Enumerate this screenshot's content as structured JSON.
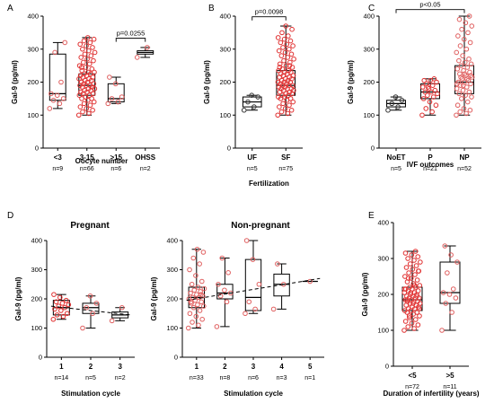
{
  "chart_data": [
    {
      "id": "A",
      "type": "box",
      "panel_letter": "A",
      "title": "",
      "xlabel": "Oocyte number",
      "ylabel": "Gal-9 (pg/ml)",
      "ylim": [
        0,
        400
      ],
      "yticks": [
        "0",
        "100",
        "200",
        "300",
        "400"
      ],
      "categories": [
        {
          "label": "<3",
          "n": "n=9",
          "color": "#e06060",
          "box": {
            "min": 120,
            "q1": 145,
            "median": 165,
            "q3": 285,
            "max": 320
          },
          "points": [
            120,
            135,
            145,
            150,
            160,
            165,
            200,
            290,
            320
          ]
        },
        {
          "label": "3-15",
          "n": "n=66",
          "color": "#e03030",
          "box": {
            "min": 100,
            "q1": 160,
            "median": 190,
            "q3": 225,
            "max": 335
          },
          "points": [
            100,
            105,
            110,
            115,
            120,
            125,
            130,
            135,
            140,
            145,
            150,
            150,
            155,
            160,
            160,
            165,
            165,
            170,
            170,
            175,
            175,
            180,
            180,
            185,
            185,
            190,
            190,
            190,
            195,
            195,
            200,
            200,
            205,
            205,
            210,
            210,
            215,
            215,
            220,
            220,
            225,
            225,
            230,
            230,
            235,
            240,
            245,
            250,
            255,
            260,
            265,
            270,
            275,
            280,
            285,
            290,
            295,
            300,
            305,
            310,
            315,
            320,
            325,
            330,
            335,
            245
          ]
        },
        {
          "label": ">15",
          "n": "n=6",
          "color": "#e06060",
          "box": {
            "min": 135,
            "q1": 140,
            "median": 150,
            "q3": 195,
            "max": 215
          },
          "points": [
            135,
            140,
            150,
            155,
            195,
            215
          ]
        },
        {
          "label": "OHSS",
          "n": "n=2",
          "color": "#e06060",
          "box": {
            "min": 275,
            "q1": 285,
            "median": 290,
            "q3": 295,
            "max": 305
          },
          "points": [
            275,
            305
          ]
        }
      ],
      "annotations": [
        {
          "text": "p=0.0255",
          "from": 2,
          "to": 3
        }
      ]
    },
    {
      "id": "B",
      "type": "box",
      "panel_letter": "B",
      "title": "",
      "xlabel": "Fertilization",
      "ylabel": "Gal-9 (pg/ml)",
      "ylim": [
        0,
        400
      ],
      "yticks": [
        "0",
        "100",
        "200",
        "300",
        "400"
      ],
      "categories": [
        {
          "label": "UF",
          "n": "n=5",
          "color": "#333333",
          "box": {
            "min": 115,
            "q1": 125,
            "median": 140,
            "q3": 155,
            "max": 160
          },
          "points": [
            115,
            125,
            140,
            155,
            160
          ]
        },
        {
          "label": "SF",
          "n": "n=75",
          "color": "#e03030",
          "box": {
            "min": 100,
            "q1": 160,
            "median": 190,
            "q3": 235,
            "max": 370
          },
          "points": [
            100,
            105,
            110,
            115,
            120,
            125,
            130,
            135,
            140,
            145,
            150,
            150,
            155,
            155,
            160,
            160,
            165,
            165,
            170,
            170,
            175,
            175,
            180,
            180,
            180,
            185,
            185,
            190,
            190,
            190,
            195,
            195,
            200,
            200,
            200,
            205,
            205,
            210,
            210,
            215,
            215,
            220,
            220,
            225,
            225,
            230,
            230,
            235,
            235,
            240,
            245,
            250,
            255,
            260,
            265,
            270,
            275,
            280,
            285,
            290,
            295,
            300,
            305,
            310,
            315,
            320,
            325,
            330,
            335,
            340,
            350,
            360,
            370,
            245,
            250
          ]
        }
      ],
      "annotations": [
        {
          "text": "p=0.0098",
          "from": 0,
          "to": 1
        }
      ]
    },
    {
      "id": "C",
      "type": "box",
      "panel_letter": "C",
      "title": "",
      "xlabel": "IVF outcomes",
      "ylabel": "Gal-9 (pg/ml)",
      "ylim": [
        0,
        400
      ],
      "yticks": [
        "0",
        "100",
        "200",
        "300",
        "400"
      ],
      "categories": [
        {
          "label": "NoET",
          "n": "n=5",
          "color": "#333333",
          "box": {
            "min": 115,
            "q1": 125,
            "median": 135,
            "q3": 145,
            "max": 155
          },
          "points": [
            115,
            125,
            135,
            145,
            155
          ]
        },
        {
          "label": "P",
          "n": "n=21",
          "color": "#e03030",
          "box": {
            "min": 100,
            "q1": 150,
            "median": 170,
            "q3": 195,
            "max": 210
          },
          "points": [
            100,
            110,
            120,
            130,
            140,
            150,
            155,
            160,
            165,
            170,
            170,
            175,
            180,
            185,
            190,
            195,
            200,
            205,
            205,
            210,
            185
          ]
        },
        {
          "label": "NP",
          "n": "n=52",
          "color": "#e06060",
          "box": {
            "min": 100,
            "q1": 165,
            "median": 200,
            "q3": 250,
            "max": 400
          },
          "points": [
            100,
            105,
            110,
            115,
            120,
            130,
            140,
            150,
            155,
            160,
            165,
            170,
            175,
            180,
            185,
            190,
            195,
            200,
            200,
            205,
            210,
            215,
            220,
            225,
            230,
            235,
            240,
            245,
            250,
            255,
            260,
            265,
            270,
            280,
            290,
            300,
            310,
            320,
            330,
            340,
            350,
            360,
            370,
            380,
            390,
            400,
            190,
            195,
            210,
            215,
            220,
            225
          ]
        }
      ],
      "annotations": [
        {
          "text": "p<0.05",
          "from": 0,
          "to": 2
        }
      ]
    },
    {
      "id": "D1",
      "type": "box",
      "panel_letter": "D",
      "title": "Pregnant",
      "xlabel": "Stimulation cycle",
      "ylabel": "Gal-9 (pg/ml)",
      "ylim": [
        0,
        400
      ],
      "yticks": [
        "0",
        "100",
        "200",
        "300",
        "400"
      ],
      "categories": [
        {
          "label": "1",
          "n": "n=14",
          "color": "#e03030",
          "box": {
            "min": 130,
            "q1": 145,
            "median": 170,
            "q3": 195,
            "max": 215
          },
          "points": [
            130,
            140,
            145,
            150,
            160,
            165,
            170,
            175,
            180,
            185,
            190,
            195,
            205,
            215
          ]
        },
        {
          "label": "2",
          "n": "n=5",
          "color": "#e06060",
          "box": {
            "min": 100,
            "q1": 150,
            "median": 170,
            "q3": 185,
            "max": 210
          },
          "points": [
            100,
            150,
            170,
            185,
            210
          ]
        },
        {
          "label": "3",
          "n": "n=2",
          "color": "#e06060",
          "box": {
            "min": 125,
            "q1": 135,
            "median": 145,
            "q3": 155,
            "max": 170
          },
          "points": [
            125,
            170
          ]
        }
      ],
      "trendline": [
        175,
        145
      ]
    },
    {
      "id": "D2",
      "type": "box",
      "panel_letter": "",
      "title": "Non-pregnant",
      "xlabel": "Stimulation cycle",
      "ylabel": "Gal-9 (pg/ml)",
      "ylim": [
        0,
        400
      ],
      "yticks": [
        "0",
        "100",
        "200",
        "300",
        "400"
      ],
      "categories": [
        {
          "label": "1",
          "n": "n=33",
          "color": "#e06060",
          "box": {
            "min": 100,
            "q1": 170,
            "median": 205,
            "q3": 240,
            "max": 370
          },
          "points": [
            100,
            110,
            120,
            130,
            140,
            150,
            160,
            170,
            175,
            180,
            185,
            190,
            195,
            200,
            205,
            205,
            210,
            215,
            220,
            225,
            230,
            235,
            240,
            250,
            260,
            280,
            300,
            320,
            340,
            360,
            370,
            190,
            215
          ]
        },
        {
          "label": "2",
          "n": "n=8",
          "color": "#e06060",
          "box": {
            "min": 105,
            "q1": 200,
            "median": 220,
            "q3": 250,
            "max": 340
          },
          "points": [
            105,
            190,
            210,
            220,
            230,
            250,
            290,
            340
          ]
        },
        {
          "label": "3",
          "n": "n=6",
          "color": "#e06060",
          "box": {
            "min": 150,
            "q1": 160,
            "median": 205,
            "q3": 335,
            "max": 400
          },
          "points": [
            150,
            165,
            190,
            250,
            335,
            400
          ]
        },
        {
          "label": "4",
          "n": "n=3",
          "color": "#e06060",
          "box": {
            "min": 165,
            "q1": 210,
            "median": 250,
            "q3": 285,
            "max": 320
          },
          "points": [
            165,
            250,
            320
          ]
        },
        {
          "label": "5",
          "n": "n=1",
          "color": "#e06060",
          "box": {
            "min": 260,
            "q1": 260,
            "median": 260,
            "q3": 260,
            "max": 260
          },
          "points": [
            260
          ]
        }
      ],
      "trendline": [
        195,
        270
      ]
    },
    {
      "id": "E",
      "type": "box",
      "panel_letter": "E",
      "title": "",
      "xlabel": "Duration of infertility (years)",
      "ylabel": "Gal-9 (pg/ml)",
      "ylim": [
        0,
        400
      ],
      "yticks": [
        "0",
        "100",
        "200",
        "300",
        "400"
      ],
      "categories": [
        {
          "label": "<5",
          "n": "n=72",
          "color": "#e03030",
          "box": {
            "min": 100,
            "q1": 155,
            "median": 185,
            "q3": 220,
            "max": 320
          },
          "points": [
            100,
            105,
            110,
            115,
            120,
            125,
            130,
            135,
            140,
            145,
            150,
            150,
            155,
            155,
            160,
            160,
            165,
            165,
            170,
            170,
            175,
            175,
            180,
            180,
            180,
            185,
            185,
            190,
            190,
            190,
            195,
            195,
            200,
            200,
            205,
            205,
            210,
            210,
            215,
            215,
            220,
            220,
            225,
            230,
            235,
            240,
            245,
            250,
            255,
            260,
            265,
            270,
            275,
            280,
            285,
            290,
            295,
            300,
            305,
            310,
            315,
            320,
            140,
            160,
            175,
            185,
            195,
            205,
            215,
            225,
            245,
            265
          ]
        },
        {
          "label": ">5",
          "n": "n=11",
          "color": "#e06060",
          "box": {
            "min": 100,
            "q1": 175,
            "median": 205,
            "q3": 290,
            "max": 335
          },
          "points": [
            100,
            150,
            175,
            190,
            200,
            205,
            215,
            260,
            290,
            310,
            335
          ]
        }
      ]
    }
  ]
}
